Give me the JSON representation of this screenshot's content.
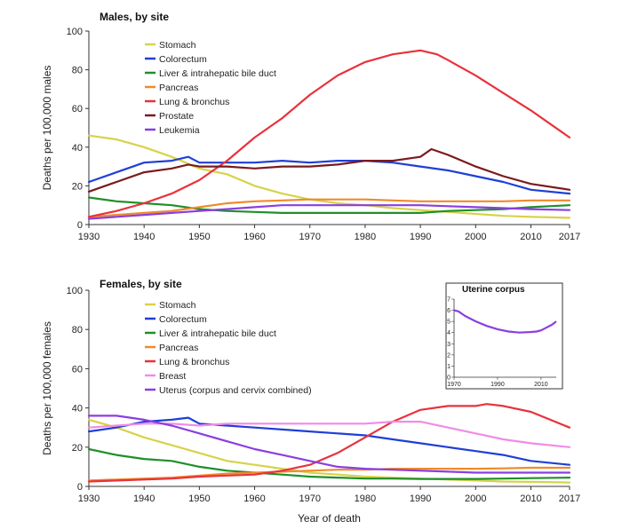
{
  "chart_data": [
    {
      "type": "line",
      "title": "Males, by site",
      "xlabel": "",
      "ylabel": "Deaths per 100,000 males",
      "xlim": [
        1930,
        2017
      ],
      "ylim": [
        0,
        100
      ],
      "xticks": [
        1930,
        1940,
        1950,
        1960,
        1970,
        1980,
        1990,
        2000,
        2010,
        2017
      ],
      "yticks": [
        0,
        20,
        40,
        60,
        80,
        100
      ],
      "legend_position": "top-left",
      "series": [
        {
          "name": "Stomach",
          "color": "#d7d24a",
          "x": [
            1930,
            1935,
            1940,
            1945,
            1950,
            1955,
            1960,
            1965,
            1970,
            1975,
            1980,
            1985,
            1990,
            1995,
            2000,
            2005,
            2010,
            2017
          ],
          "y": [
            46,
            44,
            40,
            35,
            29,
            26,
            20,
            16,
            13,
            11,
            10,
            8.5,
            7.5,
            6.5,
            5.5,
            4.5,
            4,
            3.5
          ]
        },
        {
          "name": "Colorectum",
          "color": "#1f3fd6",
          "x": [
            1930,
            1935,
            1940,
            1945,
            1948,
            1950,
            1955,
            1960,
            1965,
            1970,
            1975,
            1980,
            1985,
            1990,
            1995,
            2000,
            2005,
            2010,
            2017
          ],
          "y": [
            22,
            27,
            32,
            33,
            35,
            32,
            32,
            32,
            33,
            32,
            33,
            33,
            32,
            30,
            28,
            25,
            22,
            18,
            16
          ]
        },
        {
          "name": "Liver & intrahepatic bile duct",
          "color": "#1f8f2a",
          "x": [
            1930,
            1935,
            1940,
            1945,
            1950,
            1955,
            1960,
            1965,
            1970,
            1975,
            1980,
            1985,
            1990,
            1995,
            2000,
            2005,
            2010,
            2017
          ],
          "y": [
            14,
            12,
            11,
            10,
            8,
            7,
            6.5,
            6,
            6,
            6,
            6,
            6,
            6,
            7,
            7.5,
            8,
            9,
            10
          ]
        },
        {
          "name": "Pancreas",
          "color": "#f08a2a",
          "x": [
            1930,
            1935,
            1940,
            1945,
            1950,
            1955,
            1960,
            1965,
            1970,
            1975,
            1980,
            1985,
            1990,
            1995,
            2000,
            2005,
            2010,
            2017
          ],
          "y": [
            4,
            5,
            6,
            7,
            9,
            11,
            12,
            12.5,
            13,
            13,
            13,
            12.5,
            12,
            12,
            12,
            12,
            12.5,
            12.5
          ]
        },
        {
          "name": "Lung & bronchus",
          "color": "#e8323c",
          "x": [
            1930,
            1935,
            1940,
            1945,
            1950,
            1955,
            1960,
            1965,
            1970,
            1975,
            1980,
            1985,
            1990,
            1993,
            1995,
            2000,
            2005,
            2010,
            2017
          ],
          "y": [
            4,
            7,
            11,
            16,
            23,
            33,
            45,
            55,
            67,
            77,
            84,
            88,
            90,
            88,
            85,
            77,
            68,
            59,
            45
          ]
        },
        {
          "name": "Prostate",
          "color": "#7a1a1e",
          "x": [
            1930,
            1935,
            1940,
            1945,
            1948,
            1950,
            1955,
            1960,
            1965,
            1970,
            1975,
            1980,
            1985,
            1990,
            1992,
            1995,
            2000,
            2005,
            2010,
            2017
          ],
          "y": [
            17,
            22,
            27,
            29,
            31,
            30,
            30,
            29,
            30,
            30,
            31,
            33,
            33,
            35,
            39,
            36,
            30,
            25,
            21,
            18
          ]
        },
        {
          "name": "Leukemia",
          "color": "#8a3ee0",
          "x": [
            1930,
            1935,
            1940,
            1945,
            1950,
            1955,
            1960,
            1965,
            1970,
            1975,
            1980,
            1985,
            1990,
            1995,
            2000,
            2005,
            2010,
            2017
          ],
          "y": [
            3,
            4,
            5,
            6,
            7,
            8,
            9,
            10,
            10,
            10,
            10,
            10,
            10,
            9.5,
            9,
            8.5,
            8,
            7.5
          ]
        }
      ]
    },
    {
      "type": "line",
      "title": "Females, by site",
      "xlabel": "Year of death",
      "ylabel": "Deaths per 100,000 females",
      "xlim": [
        1930,
        2017
      ],
      "ylim": [
        0,
        100
      ],
      "xticks": [
        1930,
        1940,
        1950,
        1960,
        1970,
        1980,
        1990,
        2000,
        2010,
        2017
      ],
      "yticks": [
        0,
        20,
        40,
        60,
        80,
        100
      ],
      "legend_position": "top-left",
      "series": [
        {
          "name": "Stomach",
          "color": "#d7d24a",
          "x": [
            1930,
            1935,
            1940,
            1945,
            1950,
            1955,
            1960,
            1965,
            1970,
            1975,
            1980,
            1985,
            1990,
            1995,
            2000,
            2005,
            2010,
            2017
          ],
          "y": [
            34,
            30,
            25,
            21,
            17,
            13,
            11,
            9,
            7,
            6,
            5,
            4.5,
            4,
            3.5,
            3,
            2.5,
            2.3,
            2
          ]
        },
        {
          "name": "Colorectum",
          "color": "#1f3fd6",
          "x": [
            1930,
            1935,
            1940,
            1945,
            1948,
            1950,
            1955,
            1960,
            1965,
            1970,
            1975,
            1980,
            1985,
            1990,
            1995,
            2000,
            2005,
            2010,
            2017
          ],
          "y": [
            28,
            30,
            33,
            34,
            35,
            32,
            31,
            30,
            29,
            28,
            27,
            26,
            24,
            22,
            20,
            18,
            16,
            13,
            11
          ]
        },
        {
          "name": "Liver & intrahepatic bile duct",
          "color": "#1f8f2a",
          "x": [
            1930,
            1935,
            1940,
            1945,
            1950,
            1955,
            1960,
            1965,
            1970,
            1975,
            1980,
            1985,
            1990,
            1995,
            2000,
            2005,
            2010,
            2017
          ],
          "y": [
            19,
            16,
            14,
            13,
            10,
            8,
            7,
            6,
            5,
            4.5,
            4,
            4,
            3.8,
            3.8,
            3.8,
            4,
            4.2,
            4.5
          ]
        },
        {
          "name": "Pancreas",
          "color": "#f08a2a",
          "x": [
            1930,
            1935,
            1940,
            1945,
            1950,
            1955,
            1960,
            1965,
            1970,
            1975,
            1980,
            1985,
            1990,
            1995,
            2000,
            2005,
            2010,
            2017
          ],
          "y": [
            3,
            3.5,
            4,
            4.5,
            5.5,
            6.5,
            7,
            7.5,
            8,
            8.5,
            8.5,
            9,
            9,
            9,
            9,
            9.2,
            9.5,
            9.5
          ]
        },
        {
          "name": "Lung & bronchus",
          "color": "#e8323c",
          "x": [
            1930,
            1935,
            1940,
            1945,
            1950,
            1955,
            1960,
            1965,
            1970,
            1975,
            1980,
            1985,
            1990,
            1995,
            2000,
            2002,
            2005,
            2010,
            2017
          ],
          "y": [
            2.5,
            3,
            3.5,
            4,
            5,
            5.5,
            6,
            8,
            11,
            17,
            25,
            33,
            39,
            41,
            41,
            42,
            41,
            38,
            30
          ]
        },
        {
          "name": "Breast",
          "color": "#f08ce6",
          "x": [
            1930,
            1935,
            1940,
            1945,
            1950,
            1955,
            1960,
            1965,
            1970,
            1975,
            1980,
            1985,
            1990,
            1995,
            2000,
            2005,
            2010,
            2017
          ],
          "y": [
            30,
            31,
            32,
            32,
            31,
            32,
            32,
            32,
            32,
            32,
            32,
            33,
            33,
            30,
            27,
            24,
            22,
            20
          ]
        },
        {
          "name": "Uterus (corpus and cervix combined)",
          "color": "#8a3ee0",
          "x": [
            1930,
            1935,
            1940,
            1945,
            1950,
            1955,
            1960,
            1965,
            1970,
            1975,
            1980,
            1985,
            1990,
            1995,
            2000,
            2005,
            2010,
            2017
          ],
          "y": [
            36,
            36,
            34,
            31,
            27,
            23,
            19,
            16,
            13,
            10,
            9,
            8.5,
            8,
            7.5,
            7,
            7,
            7,
            7
          ]
        }
      ]
    },
    {
      "type": "line",
      "title": "Uterine corpus",
      "xlabel": "",
      "ylabel": "",
      "xlim": [
        1970,
        2017
      ],
      "ylim": [
        0,
        7
      ],
      "xticks": [
        1970,
        1990,
        2010
      ],
      "yticks": [
        0,
        1,
        2,
        3,
        4,
        5,
        6,
        7
      ],
      "series": [
        {
          "name": "",
          "color": "#8a3ee0",
          "x": [
            1970,
            1972,
            1975,
            1980,
            1985,
            1990,
            1995,
            2000,
            2005,
            2008,
            2010,
            2012,
            2015,
            2017
          ],
          "y": [
            6,
            5.9,
            5.5,
            5,
            4.6,
            4.3,
            4.1,
            4,
            4.05,
            4.1,
            4.2,
            4.4,
            4.7,
            5
          ]
        }
      ]
    }
  ]
}
